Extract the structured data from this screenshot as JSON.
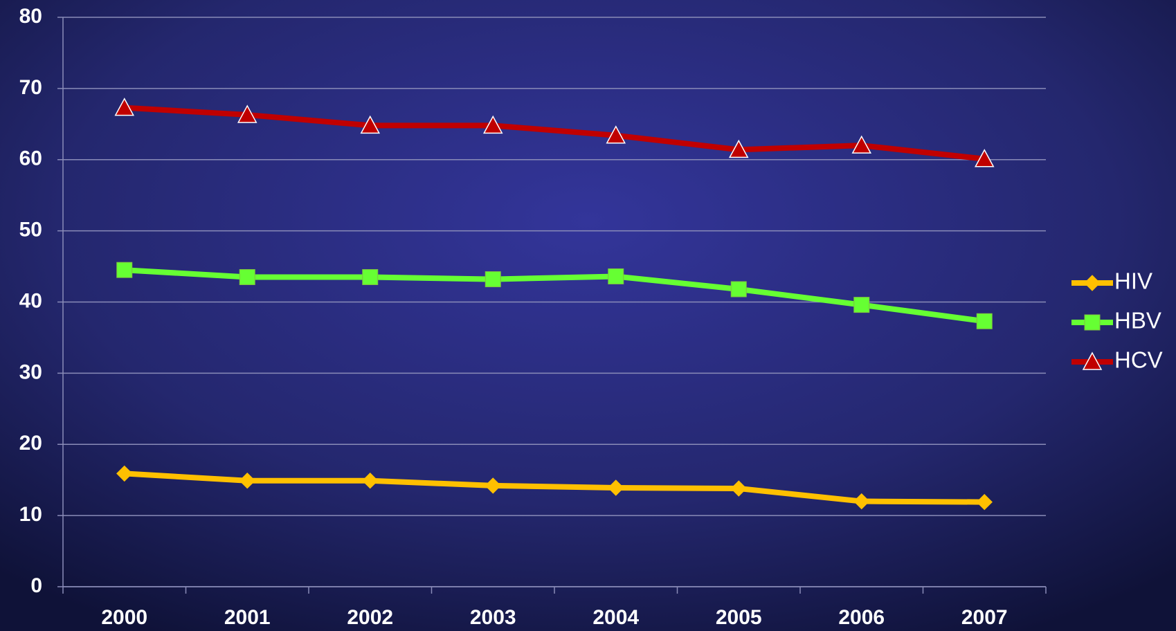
{
  "chart_data": {
    "type": "line",
    "categories": [
      "2000",
      "2001",
      "2002",
      "2003",
      "2004",
      "2005",
      "2006",
      "2007"
    ],
    "series": [
      {
        "name": "HIV",
        "color": "#ffc000",
        "marker": "diamond",
        "values": [
          15.9,
          14.9,
          14.9,
          14.2,
          13.9,
          13.8,
          12.0,
          11.9
        ]
      },
      {
        "name": "HBV",
        "color": "#66ff33",
        "marker": "square",
        "values": [
          44.5,
          43.5,
          43.5,
          43.2,
          43.6,
          41.8,
          39.6,
          37.3
        ]
      },
      {
        "name": "HCV",
        "color": "#c00000",
        "marker": "triangle",
        "values": [
          67.3,
          66.3,
          64.8,
          64.8,
          63.4,
          61.4,
          62.0,
          60.1
        ]
      }
    ],
    "ylim": [
      0,
      80
    ],
    "yticks": [
      0,
      10,
      20,
      30,
      40,
      50,
      60,
      70,
      80
    ],
    "grid": true,
    "legend": "right"
  }
}
